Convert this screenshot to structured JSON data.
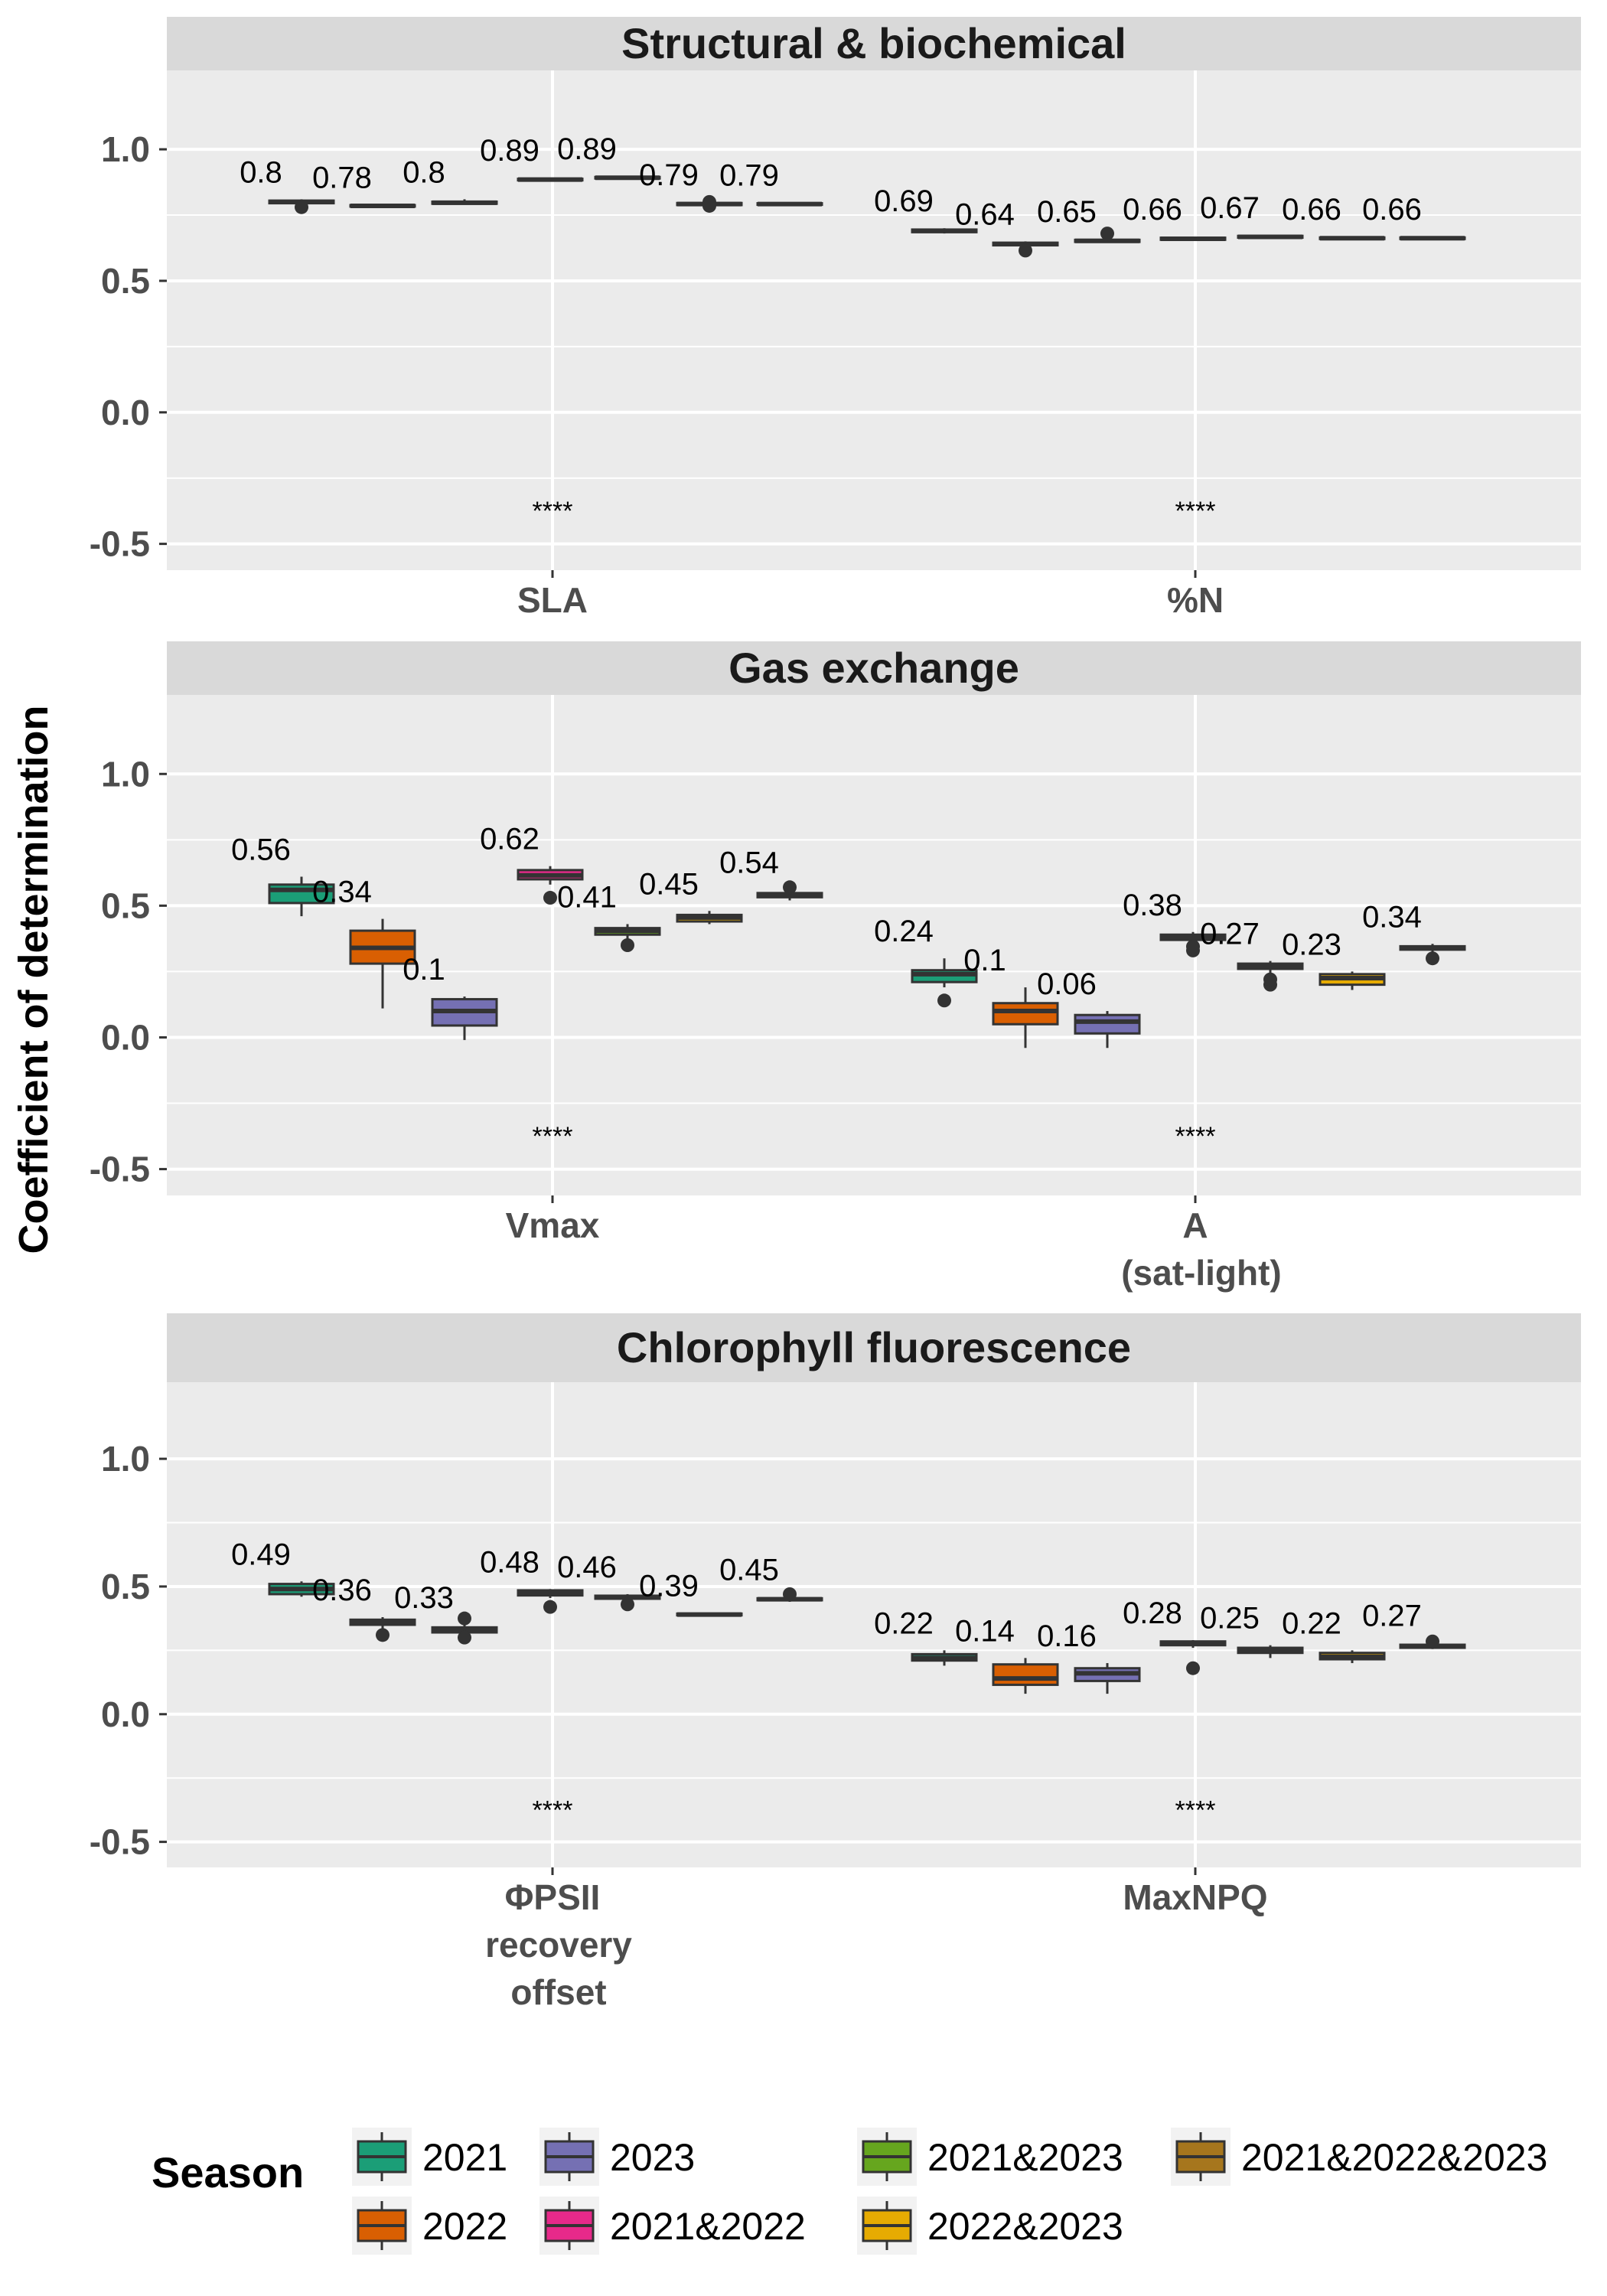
{
  "chart_data": {
    "type": "boxplot",
    "ylabel": "Coefficient of determination",
    "ylim": [
      -0.6,
      1.3
    ],
    "yticks": [
      "-0.5",
      "0.0",
      "0.5",
      "1.0"
    ],
    "legend": {
      "title": "Season",
      "position": "bottom",
      "entries": [
        {
          "label": "2021",
          "color": "#1b9e77"
        },
        {
          "label": "2022",
          "color": "#d95f02"
        },
        {
          "label": "2023",
          "color": "#7570b3"
        },
        {
          "label": "2021&2022",
          "color": "#e7298a"
        },
        {
          "label": "2021&2023",
          "color": "#66a61e"
        },
        {
          "label": "2022&2023",
          "color": "#e6ab02"
        },
        {
          "label": "2021&2022&2023",
          "color": "#a6761d"
        }
      ]
    },
    "panels": [
      {
        "title": "Structural & biochemical",
        "groups": [
          {
            "label": [
              "SLA"
            ],
            "significance": "****",
            "boxes": [
              {
                "season": "2021",
                "label": "0.8",
                "median": 0.8,
                "q1": 0.795,
                "q3": 0.805,
                "lo": 0.79,
                "hi": 0.81,
                "outliers": [
                  0.78
                ]
              },
              {
                "season": "2022",
                "label": "0.78",
                "median": 0.785,
                "q1": 0.783,
                "q3": 0.788,
                "lo": 0.78,
                "hi": 0.79,
                "outliers": []
              },
              {
                "season": "2023",
                "label": "0.8",
                "median": 0.797,
                "q1": 0.793,
                "q3": 0.801,
                "lo": 0.79,
                "hi": 0.81,
                "outliers": []
              },
              {
                "season": "2021&2022",
                "label": "0.89",
                "median": 0.885,
                "q1": 0.882,
                "q3": 0.888,
                "lo": 0.878,
                "hi": 0.892,
                "outliers": []
              },
              {
                "season": "2021&2023",
                "label": "0.89",
                "median": 0.892,
                "q1": 0.889,
                "q3": 0.895,
                "lo": 0.886,
                "hi": 0.898,
                "outliers": []
              },
              {
                "season": "2022&2023",
                "label": "0.79",
                "median": 0.792,
                "q1": 0.788,
                "q3": 0.796,
                "lo": 0.784,
                "hi": 0.8,
                "outliers": [
                  0.785,
                  0.8
                ]
              },
              {
                "season": "2021&2022&2023",
                "label": "0.79",
                "median": 0.792,
                "q1": 0.789,
                "q3": 0.795,
                "lo": 0.786,
                "hi": 0.798,
                "outliers": []
              }
            ]
          },
          {
            "label": [
              "%N"
            ],
            "significance": "****",
            "boxes": [
              {
                "season": "2021",
                "label": "0.69",
                "median": 0.69,
                "q1": 0.685,
                "q3": 0.695,
                "lo": 0.68,
                "hi": 0.7,
                "outliers": []
              },
              {
                "season": "2022",
                "label": "0.64",
                "median": 0.64,
                "q1": 0.635,
                "q3": 0.645,
                "lo": 0.63,
                "hi": 0.65,
                "outliers": [
                  0.615
                ]
              },
              {
                "season": "2023",
                "label": "0.65",
                "median": 0.652,
                "q1": 0.648,
                "q3": 0.656,
                "lo": 0.644,
                "hi": 0.66,
                "outliers": [
                  0.68
                ]
              },
              {
                "season": "2021&2022",
                "label": "0.66",
                "median": 0.66,
                "q1": 0.656,
                "q3": 0.664,
                "lo": 0.652,
                "hi": 0.668,
                "outliers": []
              },
              {
                "season": "2021&2023",
                "label": "0.67",
                "median": 0.667,
                "q1": 0.664,
                "q3": 0.671,
                "lo": 0.66,
                "hi": 0.675,
                "outliers": []
              },
              {
                "season": "2022&2023",
                "label": "0.66",
                "median": 0.662,
                "q1": 0.659,
                "q3": 0.665,
                "lo": 0.656,
                "hi": 0.668,
                "outliers": []
              },
              {
                "season": "2021&2022&2023",
                "label": "0.66",
                "median": 0.662,
                "q1": 0.659,
                "q3": 0.665,
                "lo": 0.656,
                "hi": 0.668,
                "outliers": []
              }
            ]
          }
        ]
      },
      {
        "title": "Gas exchange",
        "groups": [
          {
            "label": [
              "Vmax"
            ],
            "significance": "****",
            "boxes": [
              {
                "season": "2021",
                "label": "0.56",
                "median": 0.56,
                "q1": 0.51,
                "q3": 0.58,
                "lo": 0.46,
                "hi": 0.61,
                "outliers": []
              },
              {
                "season": "2022",
                "label": "0.34",
                "median": 0.34,
                "q1": 0.28,
                "q3": 0.405,
                "lo": 0.11,
                "hi": 0.45,
                "outliers": []
              },
              {
                "season": "2023",
                "label": "0.1",
                "median": 0.1,
                "q1": 0.045,
                "q3": 0.145,
                "lo": -0.01,
                "hi": 0.155,
                "outliers": []
              },
              {
                "season": "2021&2022",
                "label": "0.62",
                "median": 0.615,
                "q1": 0.6,
                "q3": 0.635,
                "lo": 0.58,
                "hi": 0.65,
                "outliers": [
                  0.53
                ]
              },
              {
                "season": "2021&2023",
                "label": "0.41",
                "median": 0.405,
                "q1": 0.39,
                "q3": 0.415,
                "lo": 0.37,
                "hi": 0.43,
                "outliers": [
                  0.35
                ]
              },
              {
                "season": "2022&2023",
                "label": "0.45",
                "median": 0.455,
                "q1": 0.44,
                "q3": 0.465,
                "lo": 0.43,
                "hi": 0.48,
                "outliers": []
              },
              {
                "season": "2021&2022&2023",
                "label": "0.54",
                "median": 0.54,
                "q1": 0.532,
                "q3": 0.548,
                "lo": 0.52,
                "hi": 0.56,
                "outliers": [
                  0.57
                ]
              }
            ]
          },
          {
            "label": [
              "A",
              "(sat-light)"
            ],
            "significance": "****",
            "boxes": [
              {
                "season": "2021",
                "label": "0.24",
                "median": 0.24,
                "q1": 0.21,
                "q3": 0.255,
                "lo": 0.19,
                "hi": 0.3,
                "outliers": [
                  0.14
                ]
              },
              {
                "season": "2022",
                "label": "0.1",
                "median": 0.1,
                "q1": 0.05,
                "q3": 0.13,
                "lo": -0.04,
                "hi": 0.19,
                "outliers": []
              },
              {
                "season": "2023",
                "label": "0.06",
                "median": 0.06,
                "q1": 0.015,
                "q3": 0.085,
                "lo": -0.04,
                "hi": 0.1,
                "outliers": []
              },
              {
                "season": "2021&2022",
                "label": "0.38",
                "median": 0.38,
                "q1": 0.37,
                "q3": 0.39,
                "lo": 0.35,
                "hi": 0.4,
                "outliers": [
                  0.33,
                  0.345
                ]
              },
              {
                "season": "2021&2023",
                "label": "0.27",
                "median": 0.27,
                "q1": 0.26,
                "q3": 0.28,
                "lo": 0.24,
                "hi": 0.29,
                "outliers": [
                  0.2,
                  0.22
                ]
              },
              {
                "season": "2022&2023",
                "label": "0.23",
                "median": 0.225,
                "q1": 0.2,
                "q3": 0.24,
                "lo": 0.18,
                "hi": 0.25,
                "outliers": []
              },
              {
                "season": "2021&2022&2023",
                "label": "0.34",
                "median": 0.34,
                "q1": 0.333,
                "q3": 0.346,
                "lo": 0.32,
                "hi": 0.355,
                "outliers": [
                  0.3
                ]
              }
            ]
          }
        ]
      },
      {
        "title": "Chlorophyll fluorescence",
        "groups": [
          {
            "label": [
              "ΦPSII",
              "recovery",
              "offset"
            ],
            "significance": "****",
            "boxes": [
              {
                "season": "2021",
                "label": "0.49",
                "median": 0.49,
                "q1": 0.47,
                "q3": 0.51,
                "lo": 0.46,
                "hi": 0.52,
                "outliers": []
              },
              {
                "season": "2022",
                "label": "0.36",
                "median": 0.36,
                "q1": 0.35,
                "q3": 0.37,
                "lo": 0.33,
                "hi": 0.38,
                "outliers": [
                  0.31
                ]
              },
              {
                "season": "2023",
                "label": "0.33",
                "median": 0.33,
                "q1": 0.32,
                "q3": 0.34,
                "lo": 0.31,
                "hi": 0.35,
                "outliers": [
                  0.3,
                  0.375
                ]
              },
              {
                "season": "2021&2022",
                "label": "0.48",
                "median": 0.475,
                "q1": 0.465,
                "q3": 0.485,
                "lo": 0.455,
                "hi": 0.49,
                "outliers": [
                  0.42
                ]
              },
              {
                "season": "2021&2023",
                "label": "0.46",
                "median": 0.458,
                "q1": 0.452,
                "q3": 0.464,
                "lo": 0.445,
                "hi": 0.47,
                "outliers": [
                  0.43
                ]
              },
              {
                "season": "2022&2023",
                "label": "0.39",
                "median": 0.39,
                "q1": 0.387,
                "q3": 0.394,
                "lo": 0.384,
                "hi": 0.397,
                "outliers": []
              },
              {
                "season": "2021&2022&2023",
                "label": "0.45",
                "median": 0.45,
                "q1": 0.446,
                "q3": 0.454,
                "lo": 0.44,
                "hi": 0.46,
                "outliers": [
                  0.47
                ]
              }
            ]
          },
          {
            "label": [
              "MaxNPQ"
            ],
            "significance": "****",
            "boxes": [
              {
                "season": "2021",
                "label": "0.22",
                "median": 0.22,
                "q1": 0.21,
                "q3": 0.235,
                "lo": 0.19,
                "hi": 0.25,
                "outliers": []
              },
              {
                "season": "2022",
                "label": "0.14",
                "median": 0.14,
                "q1": 0.115,
                "q3": 0.195,
                "lo": 0.08,
                "hi": 0.22,
                "outliers": []
              },
              {
                "season": "2023",
                "label": "0.16",
                "median": 0.16,
                "q1": 0.13,
                "q3": 0.18,
                "lo": 0.08,
                "hi": 0.2,
                "outliers": []
              },
              {
                "season": "2021&2022",
                "label": "0.28",
                "median": 0.275,
                "q1": 0.27,
                "q3": 0.285,
                "lo": 0.26,
                "hi": 0.29,
                "outliers": [
                  0.18
                ]
              },
              {
                "season": "2021&2023",
                "label": "0.25",
                "median": 0.25,
                "q1": 0.24,
                "q3": 0.26,
                "lo": 0.22,
                "hi": 0.27,
                "outliers": []
              },
              {
                "season": "2022&2023",
                "label": "0.22",
                "median": 0.225,
                "q1": 0.215,
                "q3": 0.24,
                "lo": 0.2,
                "hi": 0.25,
                "outliers": []
              },
              {
                "season": "2021&2022&2023",
                "label": "0.27",
                "median": 0.265,
                "q1": 0.26,
                "q3": 0.272,
                "lo": 0.255,
                "hi": 0.28,
                "outliers": [
                  0.285
                ]
              }
            ]
          }
        ]
      }
    ]
  }
}
